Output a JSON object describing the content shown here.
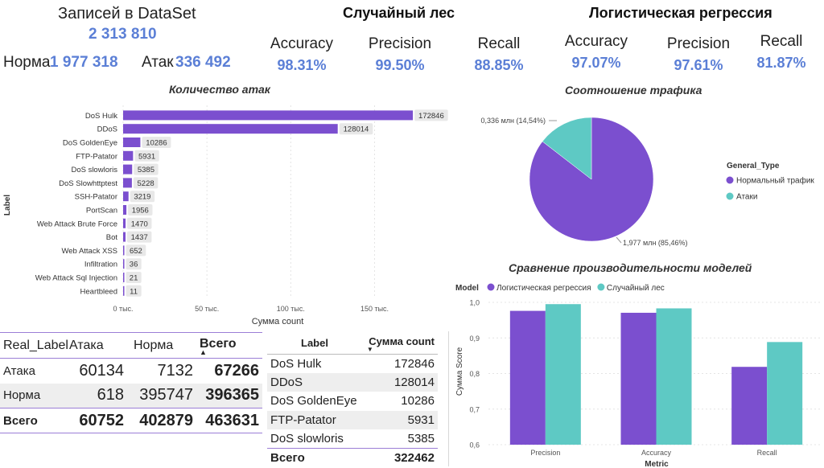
{
  "kpi": {
    "records_label": "Записей в DataSet",
    "records_value": "2 313 810",
    "norm_label": "Норма",
    "norm_value": "1 977 318",
    "attack_label": "Атак",
    "attack_value": "336 492"
  },
  "random_forest": {
    "title": "Случайный лес",
    "accuracy_label": "Accuracy",
    "accuracy_value": "98.31%",
    "precision_label": "Precision",
    "precision_value": "99.50%",
    "recall_label": "Recall",
    "recall_value": "88.85%"
  },
  "logistic": {
    "title": "Логистическая регрессия",
    "accuracy_label": "Accuracy",
    "accuracy_value": "97.07%",
    "precision_label": "Precision",
    "precision_value": "97.61%",
    "recall_label": "Recall",
    "recall_value": "81.87%"
  },
  "colors": {
    "accent": "#5b7fd6",
    "purple": "#7b4fcf",
    "teal": "#5ec9c4",
    "label_bg": "#e8e8e8"
  },
  "chart_data": [
    {
      "type": "bar",
      "orientation": "horizontal",
      "title": "Количество атак",
      "xlabel": "Сумма count",
      "ylabel": "Label",
      "categories": [
        "DoS Hulk",
        "DDoS",
        "DoS GoldenEye",
        "FTP-Patator",
        "DoS slowloris",
        "DoS Slowhttptest",
        "SSH-Patator",
        "PortScan",
        "Web Attack   Brute Force",
        "Bot",
        "Web Attack   XSS",
        "Infiltration",
        "Web Attack   Sql Injection",
        "Heartbleed"
      ],
      "values": [
        172846,
        128014,
        10286,
        5931,
        5385,
        5228,
        3219,
        1956,
        1470,
        1437,
        652,
        36,
        21,
        11
      ],
      "xlim": [
        0,
        180000
      ],
      "xticks": [
        0,
        50000,
        100000,
        150000
      ],
      "xtick_labels": [
        "0 тыс.",
        "50 тыс.",
        "100 тыс.",
        "150 тыс."
      ],
      "grid": true
    },
    {
      "type": "pie",
      "title": "Соотношение трафика",
      "legend_title": "General_Type",
      "legend_position": "right",
      "slices": [
        {
          "name": "Нормальный трафик",
          "value": 1.977,
          "label": "1,977 млн (85,46%)"
        },
        {
          "name": "Атаки",
          "value": 0.336,
          "label": "0,336 млн (14,54%)"
        }
      ]
    },
    {
      "type": "bar",
      "title": "Сравнение производительности моделей",
      "legend_title": "Model",
      "legend_position": "top-left",
      "xlabel": "Metric",
      "ylabel": "Сумма Score",
      "categories": [
        "Precision",
        "Accuracy",
        "Recall"
      ],
      "series": [
        {
          "name": "Логистическая регрессия",
          "values": [
            0.9761,
            0.9707,
            0.8187
          ]
        },
        {
          "name": "Случайный лес",
          "values": [
            0.995,
            0.9831,
            0.8885
          ]
        }
      ],
      "ylim": [
        0.6,
        1.0
      ],
      "yticks": [
        "0,6",
        "0,7",
        "0,8",
        "0,9",
        "1,0"
      ],
      "grid": true
    }
  ],
  "matrix": {
    "headers": [
      "Real_Label",
      "Атака",
      "Норма",
      "Всего"
    ],
    "rows": [
      {
        "label": "Атака",
        "a": "60134",
        "n": "7132",
        "t": "67266"
      },
      {
        "label": "Норма",
        "a": "618",
        "n": "395747",
        "t": "396365"
      }
    ],
    "total": {
      "label": "Всего",
      "a": "60752",
      "n": "402879",
      "t": "463631"
    }
  },
  "label_table": {
    "headers": [
      "Label",
      "Сумма count"
    ],
    "rows": [
      {
        "label": "DoS Hulk",
        "count": "172846"
      },
      {
        "label": "DDoS",
        "count": "128014"
      },
      {
        "label": "DoS GoldenEye",
        "count": "10286"
      },
      {
        "label": "FTP-Patator",
        "count": "5931"
      },
      {
        "label": "DoS slowloris",
        "count": "5385"
      }
    ],
    "total": {
      "label": "Всего",
      "count": "322462"
    }
  }
}
